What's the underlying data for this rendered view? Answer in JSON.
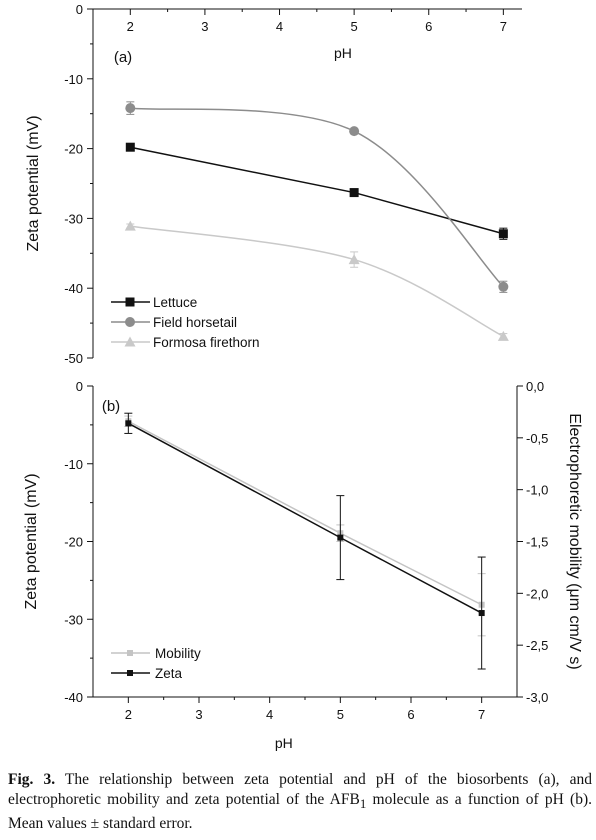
{
  "chart_data": [
    {
      "type": "line",
      "panel_label": "(a)",
      "xlabel": "pH",
      "ylabel": "Zeta potential (mV)",
      "x_ticks": [
        "2",
        "3",
        "4",
        "5",
        "6",
        "7"
      ],
      "y_ticks": [
        "0",
        "-10",
        "-20",
        "-30",
        "-40",
        "-50"
      ],
      "xlim": [
        1.5,
        7.25
      ],
      "ylim": [
        -50,
        0
      ],
      "legend_position": "bottom-left",
      "series": [
        {
          "name": "Lettuce",
          "x": [
            2,
            5,
            7
          ],
          "y": [
            -19.8,
            -26.3,
            -32.2
          ],
          "err": [
            0.3,
            0.4,
            0.8
          ],
          "marker": "square",
          "color": "#111111",
          "line_color": "#111111"
        },
        {
          "name": "Field horsetail",
          "x": [
            2,
            5,
            7
          ],
          "y": [
            -14.2,
            -17.5,
            -39.8
          ],
          "err": [
            0.9,
            0.3,
            0.8
          ],
          "marker": "circle",
          "color": "#8c8c8c",
          "line_color": "#8c8c8c"
        },
        {
          "name": "Formosa firethorn",
          "x": [
            2,
            5,
            7
          ],
          "y": [
            -31.1,
            -35.9,
            -46.9
          ],
          "err": [
            0.3,
            1.1,
            0.4
          ],
          "marker": "triangle",
          "color": "#c9c9c9",
          "line_color": "#c9c9c9"
        }
      ]
    },
    {
      "type": "line",
      "panel_label": "(b)",
      "xlabel": "pH",
      "ylabel": "Zeta potential (mV)",
      "y2label": "Electrophoretic mobility (μm cm/V s)",
      "x_ticks": [
        "2",
        "3",
        "4",
        "5",
        "6",
        "7"
      ],
      "y_ticks": [
        "0",
        "-10",
        "-20",
        "-30",
        "-40"
      ],
      "y2_ticks": [
        "0,0",
        "-0,5",
        "-1,0",
        "-1,5",
        "-2,0",
        "-2,5",
        "-3,0"
      ],
      "xlim": [
        1.5,
        7.5
      ],
      "ylim": [
        -40,
        0
      ],
      "y2lim": [
        -3.0,
        0.0
      ],
      "legend_position": "bottom-left",
      "series": [
        {
          "name": "Mobility",
          "axis": "right",
          "x": [
            2,
            5,
            7
          ],
          "y": [
            -0.34,
            -1.42,
            -2.11
          ],
          "err": [
            0.05,
            0.08,
            0.3
          ],
          "marker": "square",
          "color": "#c4c4c4",
          "line_color": "#c4c4c4"
        },
        {
          "name": "Zeta",
          "axis": "left",
          "x": [
            2,
            5,
            7
          ],
          "y": [
            -4.8,
            -19.5,
            -29.2
          ],
          "err": [
            1.3,
            5.4,
            7.2
          ],
          "marker": "square",
          "color": "#111111",
          "line_color": "#111111"
        }
      ]
    }
  ],
  "caption": {
    "lead": "Fig. 3.",
    "text_before_sub": " The relationship between zeta potential and pH of the biosorbents (a), and electrophoretic mobility and zeta potential of the AFB",
    "subscript": "1",
    "text_after_sub": " molecule as a function of pH (b). Mean values ± standard error."
  }
}
